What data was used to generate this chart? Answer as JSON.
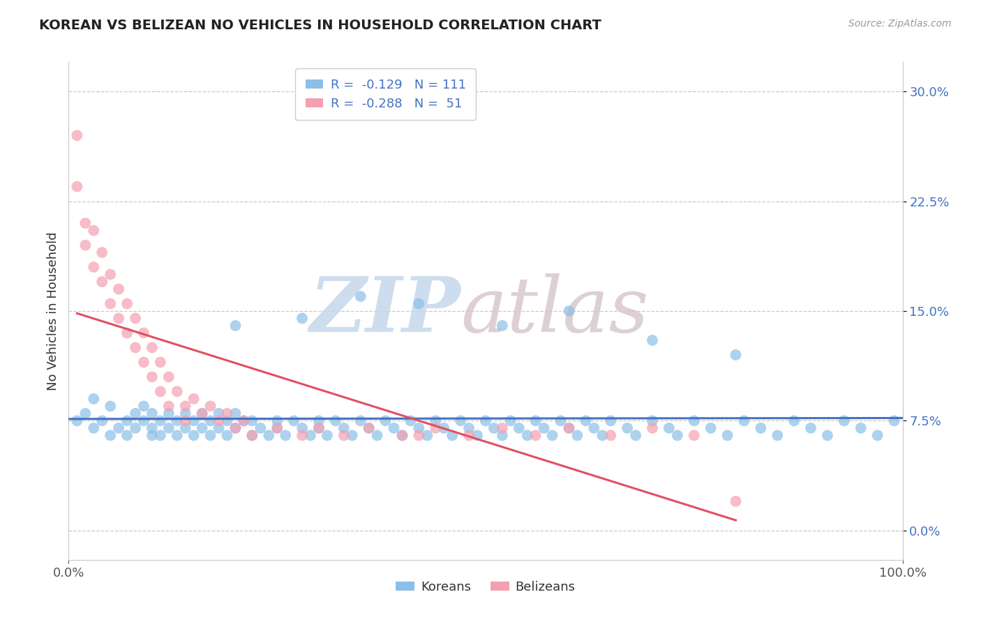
{
  "title": "KOREAN VS BELIZEAN NO VEHICLES IN HOUSEHOLD CORRELATION CHART",
  "source": "Source: ZipAtlas.com",
  "ylabel": "No Vehicles in Household",
  "xlim": [
    0.0,
    1.0
  ],
  "ylim": [
    -0.02,
    0.32
  ],
  "yticks": [
    0.0,
    0.075,
    0.15,
    0.225,
    0.3
  ],
  "ytick_labels": [
    "0.0%",
    "7.5%",
    "15.0%",
    "22.5%",
    "30.0%"
  ],
  "xtick_labels": [
    "0.0%",
    "100.0%"
  ],
  "korean_R": -0.129,
  "korean_N": 111,
  "belizean_R": -0.288,
  "belizean_N": 51,
  "korean_color": "#8bbfe8",
  "belizean_color": "#f4a0b0",
  "korean_line_color": "#4472c4",
  "belizean_line_color": "#e05060",
  "background_color": "#ffffff",
  "grid_color": "#c8c8c8",
  "title_color": "#222222",
  "legend_text_color": "#4472c4",
  "watermark_zip_color": "#c5d8ec",
  "watermark_atlas_color": "#d8c8cc",
  "korean_x": [
    0.01,
    0.02,
    0.03,
    0.03,
    0.04,
    0.05,
    0.05,
    0.06,
    0.07,
    0.07,
    0.08,
    0.08,
    0.09,
    0.09,
    0.1,
    0.1,
    0.1,
    0.11,
    0.11,
    0.12,
    0.12,
    0.13,
    0.13,
    0.14,
    0.14,
    0.15,
    0.15,
    0.16,
    0.16,
    0.17,
    0.17,
    0.18,
    0.18,
    0.19,
    0.19,
    0.2,
    0.2,
    0.21,
    0.22,
    0.22,
    0.23,
    0.24,
    0.25,
    0.25,
    0.26,
    0.27,
    0.28,
    0.29,
    0.3,
    0.3,
    0.31,
    0.32,
    0.33,
    0.34,
    0.35,
    0.36,
    0.37,
    0.38,
    0.39,
    0.4,
    0.41,
    0.42,
    0.43,
    0.44,
    0.45,
    0.46,
    0.47,
    0.48,
    0.49,
    0.5,
    0.51,
    0.52,
    0.53,
    0.54,
    0.55,
    0.56,
    0.57,
    0.58,
    0.59,
    0.6,
    0.61,
    0.62,
    0.63,
    0.64,
    0.65,
    0.67,
    0.68,
    0.7,
    0.72,
    0.73,
    0.75,
    0.77,
    0.79,
    0.81,
    0.83,
    0.85,
    0.87,
    0.89,
    0.91,
    0.93,
    0.95,
    0.97,
    0.99,
    0.52,
    0.6,
    0.7,
    0.8,
    0.42,
    0.35,
    0.28,
    0.2
  ],
  "korean_y": [
    0.075,
    0.08,
    0.07,
    0.09,
    0.075,
    0.065,
    0.085,
    0.07,
    0.075,
    0.065,
    0.08,
    0.07,
    0.075,
    0.085,
    0.065,
    0.08,
    0.07,
    0.075,
    0.065,
    0.08,
    0.07,
    0.075,
    0.065,
    0.08,
    0.07,
    0.075,
    0.065,
    0.08,
    0.07,
    0.075,
    0.065,
    0.08,
    0.07,
    0.075,
    0.065,
    0.08,
    0.07,
    0.075,
    0.065,
    0.075,
    0.07,
    0.065,
    0.075,
    0.07,
    0.065,
    0.075,
    0.07,
    0.065,
    0.075,
    0.07,
    0.065,
    0.075,
    0.07,
    0.065,
    0.075,
    0.07,
    0.065,
    0.075,
    0.07,
    0.065,
    0.075,
    0.07,
    0.065,
    0.075,
    0.07,
    0.065,
    0.075,
    0.07,
    0.065,
    0.075,
    0.07,
    0.065,
    0.075,
    0.07,
    0.065,
    0.075,
    0.07,
    0.065,
    0.075,
    0.07,
    0.065,
    0.075,
    0.07,
    0.065,
    0.075,
    0.07,
    0.065,
    0.075,
    0.07,
    0.065,
    0.075,
    0.07,
    0.065,
    0.075,
    0.07,
    0.065,
    0.075,
    0.07,
    0.065,
    0.075,
    0.07,
    0.065,
    0.075,
    0.14,
    0.15,
    0.13,
    0.12,
    0.155,
    0.16,
    0.145,
    0.14
  ],
  "belizean_x": [
    0.01,
    0.01,
    0.02,
    0.02,
    0.03,
    0.03,
    0.04,
    0.04,
    0.05,
    0.05,
    0.06,
    0.06,
    0.07,
    0.07,
    0.08,
    0.08,
    0.09,
    0.09,
    0.1,
    0.1,
    0.11,
    0.11,
    0.12,
    0.12,
    0.13,
    0.14,
    0.15,
    0.16,
    0.17,
    0.18,
    0.19,
    0.2,
    0.21,
    0.22,
    0.25,
    0.28,
    0.3,
    0.33,
    0.36,
    0.4,
    0.44,
    0.48,
    0.52,
    0.56,
    0.6,
    0.65,
    0.7,
    0.75,
    0.14,
    0.42,
    0.8
  ],
  "belizean_y": [
    0.27,
    0.235,
    0.21,
    0.195,
    0.205,
    0.18,
    0.19,
    0.17,
    0.175,
    0.155,
    0.165,
    0.145,
    0.155,
    0.135,
    0.145,
    0.125,
    0.135,
    0.115,
    0.125,
    0.105,
    0.115,
    0.095,
    0.105,
    0.085,
    0.095,
    0.085,
    0.09,
    0.08,
    0.085,
    0.075,
    0.08,
    0.07,
    0.075,
    0.065,
    0.07,
    0.065,
    0.07,
    0.065,
    0.07,
    0.065,
    0.07,
    0.065,
    0.07,
    0.065,
    0.07,
    0.065,
    0.07,
    0.065,
    0.075,
    0.065,
    0.02
  ]
}
